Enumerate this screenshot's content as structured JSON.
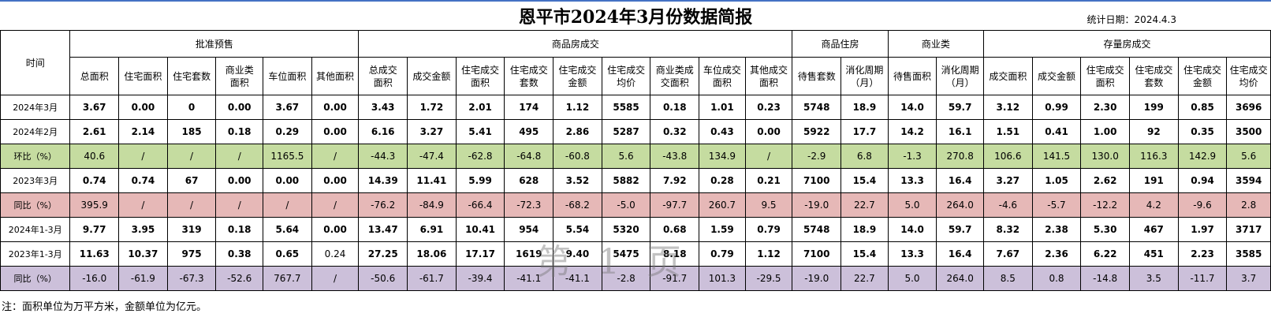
{
  "title": "恩平市2024年3月份数据简报",
  "stat_date": "统计日期：2024.4.3",
  "groups": {
    "time": "时间",
    "approved_presale": "批准预售",
    "commodity_housing_deals": "商品房成交",
    "commodity_residential": "商品住房",
    "commercial": "商业类",
    "stock_housing_deals": "存量房成交"
  },
  "columns": [
    "总面积",
    "住宅面积",
    "住宅套数",
    "商业类\n面积",
    "车位面积",
    "其他面积",
    "总成交\n面积",
    "成交金额",
    "住宅成交\n面积",
    "住宅成交\n套数",
    "住宅成交\n金额",
    "住宅成交\n均价",
    "商业类成\n交面积",
    "车位成交\n面积",
    "其他成交\n面积",
    "待售套数",
    "消化周期\n（月）",
    "待售面积",
    "消化周期\n（月）",
    "成交面积",
    "成交金额",
    "住宅成交\n面积",
    "住宅成交\n套数",
    "住宅成交\n金额",
    "住宅成交\n均价"
  ],
  "rows": [
    {
      "label": "2024年3月",
      "style": "plain",
      "cells": [
        "3.67",
        "0.00",
        "0",
        "0.00",
        "3.67",
        "0.00",
        "3.43",
        "1.72",
        "2.01",
        "174",
        "1.12",
        "5585",
        "0.18",
        "1.01",
        "0.23",
        "5748",
        "18.9",
        "14.0",
        "59.7",
        "3.12",
        "0.99",
        "2.30",
        "199",
        "0.85",
        "3696"
      ]
    },
    {
      "label": "2024年2月",
      "style": "plain",
      "cells": [
        "2.61",
        "2.14",
        "185",
        "0.18",
        "0.29",
        "0.00",
        "6.16",
        "3.27",
        "5.41",
        "495",
        "2.86",
        "5287",
        "0.32",
        "0.43",
        "0.00",
        "5922",
        "17.7",
        "14.2",
        "16.1",
        "1.51",
        "0.41",
        "1.00",
        "92",
        "0.35",
        "3500"
      ]
    },
    {
      "label": "环比（%）",
      "style": "green",
      "cells": [
        "40.6",
        "/",
        "/",
        "/",
        "1165.5",
        "/",
        "-44.3",
        "-47.4",
        "-62.8",
        "-64.8",
        "-60.8",
        "5.6",
        "-43.8",
        "134.9",
        "/",
        "-2.9",
        "6.8",
        "-1.3",
        "270.8",
        "106.6",
        "141.5",
        "130.0",
        "116.3",
        "142.9",
        "5.6"
      ]
    },
    {
      "label": "2023年3月",
      "style": "plain",
      "cells": [
        "0.74",
        "0.74",
        "67",
        "0.00",
        "0.00",
        "0.00",
        "14.39",
        "11.41",
        "5.99",
        "628",
        "3.52",
        "5882",
        "7.92",
        "0.28",
        "0.21",
        "7100",
        "15.4",
        "13.3",
        "16.4",
        "3.27",
        "1.05",
        "2.62",
        "191",
        "0.94",
        "3594"
      ]
    },
    {
      "label": "同比（%）",
      "style": "pink",
      "cells": [
        "395.9",
        "/",
        "/",
        "/",
        "/",
        "/",
        "-76.2",
        "-84.9",
        "-66.4",
        "-72.3",
        "-68.2",
        "-5.0",
        "-97.7",
        "260.7",
        "9.5",
        "-19.0",
        "22.7",
        "5.0",
        "264.0",
        "-4.6",
        "-5.7",
        "-12.2",
        "4.2",
        "-9.6",
        "2.8"
      ]
    },
    {
      "label": "2024年1-3月",
      "style": "plain",
      "cells": [
        "9.77",
        "3.95",
        "319",
        "0.18",
        "5.64",
        "0.00",
        "13.47",
        "6.91",
        "10.41",
        "954",
        "5.54",
        "5320",
        "0.68",
        "1.59",
        "0.79",
        "5748",
        "18.9",
        "14.0",
        "59.7",
        "8.32",
        "2.38",
        "5.30",
        "467",
        "1.97",
        "3717"
      ]
    },
    {
      "label": "2023年1-3月",
      "style": "plain",
      "cells": [
        "11.63",
        "10.37",
        "975",
        "0.38",
        "0.65",
        "0.24",
        "27.25",
        "18.06",
        "17.17",
        "1619",
        "9.40",
        "5475",
        "8.18",
        "0.79",
        "1.12",
        "7100",
        "15.4",
        "13.3",
        "16.4",
        "7.67",
        "2.36",
        "6.22",
        "451",
        "2.23",
        "3585"
      ]
    },
    {
      "label": "同比（%）",
      "style": "purple",
      "cells": [
        "-16.0",
        "-61.9",
        "-67.3",
        "-52.6",
        "767.7",
        "/",
        "-50.6",
        "-61.7",
        "-39.4",
        "-41.1",
        "-41.1",
        "-2.8",
        "-91.7",
        "101.3",
        "-29.5",
        "-19.0",
        "22.7",
        "5.0",
        "264.0",
        "8.5",
        "0.8",
        "-14.8",
        "3.5",
        "-11.7",
        "3.7"
      ]
    }
  ],
  "note": "注：面积单位为万平方米，金额单位为亿元。",
  "watermark": "第 1 页",
  "colors": {
    "green_row": "#c5dca0",
    "pink_row": "#e6b8b7",
    "purple_row": "#ccc0da",
    "top_rule": "#4472c4"
  }
}
